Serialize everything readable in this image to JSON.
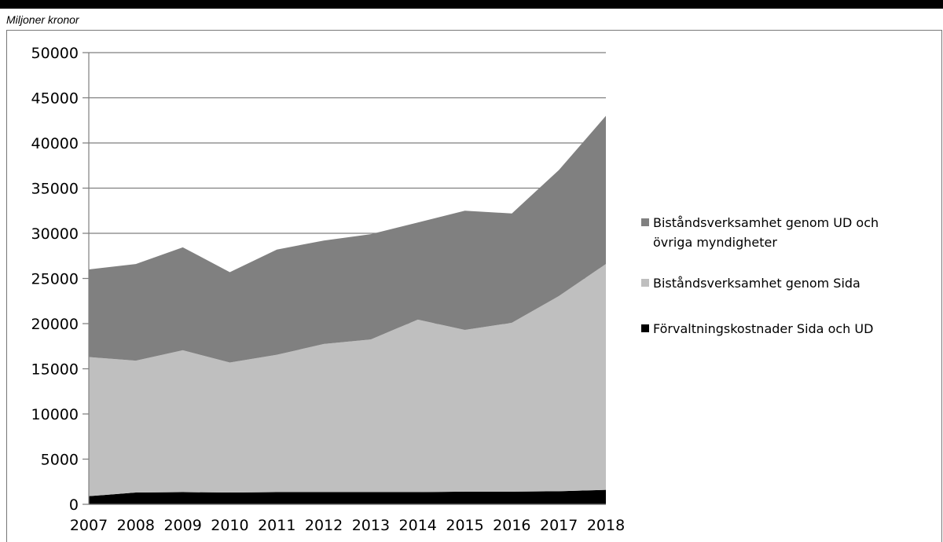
{
  "chart_data": {
    "type": "area",
    "stacked": true,
    "unit_label": "Miljoner kronor",
    "title": "",
    "xlabel": "",
    "ylabel": "",
    "x": [
      "2007",
      "2008",
      "2009",
      "2010",
      "2011",
      "2012",
      "2013",
      "2014",
      "2015",
      "2016",
      "2017",
      "2018"
    ],
    "ylim": [
      0,
      50000
    ],
    "yticks": [
      "0",
      "5000",
      "10000",
      "15000",
      "20000",
      "25000",
      "30000",
      "35000",
      "40000",
      "45000",
      "50000"
    ],
    "grid": true,
    "legend_position": "right",
    "series": [
      {
        "name": "Förvaltningskostnader Sida och UD",
        "color": "#000000",
        "values": [
          900,
          1300,
          1350,
          1300,
          1350,
          1350,
          1350,
          1350,
          1400,
          1400,
          1450,
          1600
        ]
      },
      {
        "name": "Biståndsverksamhet genom Sida",
        "color": "#bfbfbf",
        "values": [
          15400,
          14600,
          15700,
          14400,
          15200,
          16400,
          16900,
          19100,
          17900,
          18700,
          21600,
          25000
        ]
      },
      {
        "name": "Biståndsverksamhet genom UD och övriga myndigheter",
        "color": "#808080",
        "legend_lines": [
          "Biståndsverksamhet genom UD och",
          "övriga myndigheter"
        ],
        "values": [
          9700,
          10700,
          11400,
          10000,
          11650,
          11450,
          11650,
          10750,
          13200,
          12100,
          13950,
          16400
        ]
      }
    ]
  }
}
